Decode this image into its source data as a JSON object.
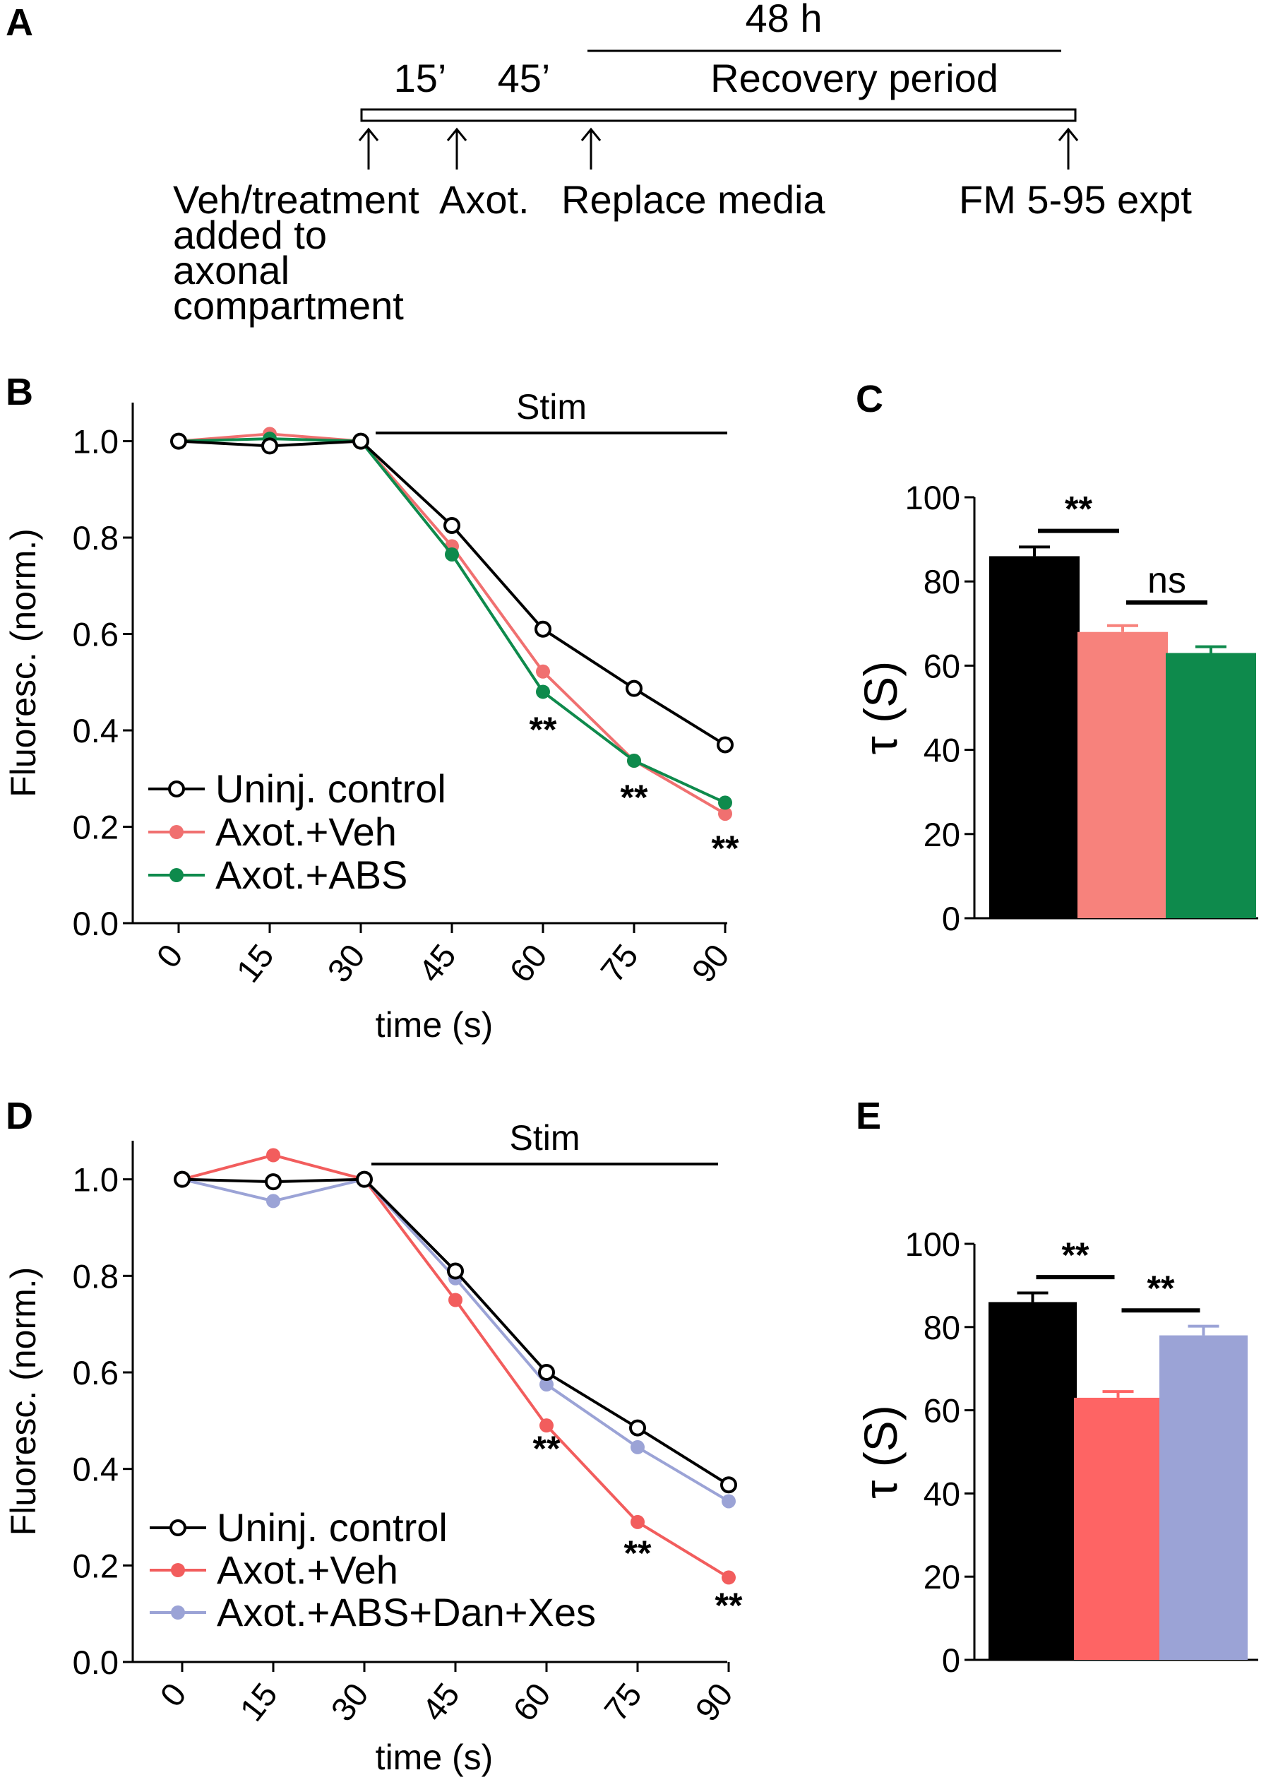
{
  "panel_letters": {
    "a": "A",
    "b": "B",
    "c": "C",
    "d": "D",
    "e": "E"
  },
  "timeline": {
    "duration_label": "48 h",
    "recovery_label": "Recovery period",
    "interval_1": "15’",
    "interval_2": "45’",
    "events": [
      {
        "lines": [
          "Veh/treatment",
          "added to",
          "axonal",
          "compartment"
        ]
      },
      {
        "lines": [
          "Axot."
        ]
      },
      {
        "lines": [
          "Replace media"
        ]
      },
      {
        "lines": [
          "FM 5-95 expt"
        ]
      }
    ]
  },
  "chart_data": [
    {
      "id": "B",
      "type": "line",
      "title": "Stim",
      "xlabel": "time (s)",
      "ylabel": "Fluoresc. (norm.)",
      "categories": [
        "0",
        "15",
        "30",
        "45",
        "60",
        "75",
        "90"
      ],
      "x": [
        0,
        15,
        30,
        45,
        60,
        75,
        90
      ],
      "yticks": [
        "0.0",
        "0.2",
        "0.4",
        "0.6",
        "0.8",
        "1.0"
      ],
      "ylim": [
        0,
        1.08
      ],
      "series": [
        {
          "name": "Uninj. control",
          "color": "#000000",
          "marker": "open",
          "values": [
            1.0,
            0.99,
            1.0,
            0.825,
            0.61,
            0.487,
            0.37
          ]
        },
        {
          "name": "Axot.+Veh",
          "color": "#f07070",
          "marker": "filled",
          "values": [
            1.0,
            1.015,
            1.0,
            0.782,
            0.522,
            0.337,
            0.227
          ]
        },
        {
          "name": "Axot.+ABS",
          "color": "#0e8a4c",
          "marker": "filled",
          "values": [
            1.0,
            1.005,
            1.0,
            0.765,
            0.48,
            0.337,
            0.25
          ]
        }
      ],
      "annotations": [
        {
          "x": 60,
          "text": "**"
        },
        {
          "x": 75,
          "text": "**"
        },
        {
          "x": 90,
          "text": "**"
        }
      ]
    },
    {
      "id": "C",
      "type": "bar",
      "ylabel": "τ (S)",
      "yticks": [
        "0",
        "20",
        "40",
        "60",
        "80",
        "100"
      ],
      "ylim": [
        0,
        100
      ],
      "bars": [
        {
          "name": "Uninj. control",
          "value": 86,
          "error": 2.2,
          "color": "#000000"
        },
        {
          "name": "Axot.+Veh",
          "value": 68,
          "error": 1.5,
          "color": "#f7827c"
        },
        {
          "name": "Axot.+ABS",
          "value": 63,
          "error": 1.5,
          "color": "#0e8a4c"
        }
      ],
      "comparisons": [
        {
          "from": 0,
          "to": 1,
          "text": "**",
          "y": 92
        },
        {
          "from": 1,
          "to": 2,
          "text": "ns",
          "y": 75
        }
      ]
    },
    {
      "id": "D",
      "type": "line",
      "title": "Stim",
      "xlabel": "time (s)",
      "ylabel": "Fluoresc. (norm.)",
      "categories": [
        "0",
        "15",
        "30",
        "45",
        "60",
        "75",
        "90"
      ],
      "x": [
        0,
        15,
        30,
        45,
        60,
        75,
        90
      ],
      "yticks": [
        "0.0",
        "0.2",
        "0.4",
        "0.6",
        "0.8",
        "1.0"
      ],
      "ylim": [
        0,
        1.08
      ],
      "series": [
        {
          "name": "Uninj. control",
          "color": "#000000",
          "marker": "open",
          "values": [
            1.0,
            0.995,
            1.0,
            0.81,
            0.6,
            0.485,
            0.367
          ]
        },
        {
          "name": "Axot.+Veh",
          "color": "#f25d5d",
          "marker": "filled",
          "values": [
            1.0,
            1.05,
            1.0,
            0.75,
            0.49,
            0.29,
            0.175
          ]
        },
        {
          "name": "Axot.+ABS+Dan+Xes",
          "color": "#9ba3d6",
          "marker": "filled",
          "values": [
            1.0,
            0.955,
            1.0,
            0.795,
            0.575,
            0.445,
            0.333
          ]
        }
      ],
      "annotations": [
        {
          "x": 60,
          "text": "**"
        },
        {
          "x": 75,
          "text": "**"
        },
        {
          "x": 90,
          "text": "**"
        }
      ]
    },
    {
      "id": "E",
      "type": "bar",
      "ylabel": "τ (S)",
      "yticks": [
        "0",
        "20",
        "40",
        "60",
        "80",
        "100"
      ],
      "ylim": [
        0,
        100
      ],
      "bars": [
        {
          "name": "Uninj. control",
          "value": 86,
          "error": 2.2,
          "color": "#000000"
        },
        {
          "name": "Axot.+Veh",
          "value": 63,
          "error": 1.5,
          "color": "#fe6464"
        },
        {
          "name": "Axot.+ABS+Dan+Xes",
          "value": 78,
          "error": 2.2,
          "color": "#9ba3d6"
        }
      ],
      "comparisons": [
        {
          "from": 0,
          "to": 1,
          "text": "**",
          "y": 92
        },
        {
          "from": 1,
          "to": 2,
          "text": "**",
          "y": 84
        }
      ]
    }
  ]
}
